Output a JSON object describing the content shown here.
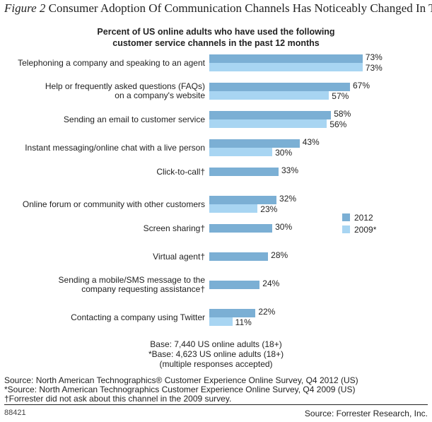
{
  "figure": {
    "number": "Figure 2",
    "title": "Consumer Adoption Of Communication Channels Has Noticeably Changed In Three Years",
    "id": "88421",
    "source_credit": "Source: Forrester Research, Inc."
  },
  "chart_data": {
    "type": "bar",
    "orientation": "horizontal",
    "title": "Percent of US online adults who have used the following\ncustomer service channels in the past 12 months",
    "categories": [
      "Telephoning a company and speaking to an agent",
      "Help or frequently asked questions (FAQs)\non a company's website",
      "Sending an email to customer service",
      "Instant messaging/online chat with a live person",
      "Click-to-call†",
      "Online forum or community with other customers",
      "Screen sharing†",
      "Virtual agent†",
      "Sending a mobile/SMS message to the\ncompany requesting assistance†",
      "Contacting a company using Twitter"
    ],
    "series": [
      {
        "name": "2012",
        "color": "#7bafd4",
        "values": [
          73,
          67,
          58,
          43,
          33,
          32,
          30,
          28,
          24,
          22
        ]
      },
      {
        "name": "2009*",
        "color": "#a8d5f2",
        "values": [
          73,
          57,
          56,
          30,
          null,
          23,
          null,
          null,
          null,
          11
        ]
      }
    ],
    "value_suffix": "%",
    "legend": "right",
    "grid": false,
    "xlabel": "",
    "ylabel": ""
  },
  "notes": {
    "base": "Base: 7,440 US online adults (18+)\n*Base: 4,623 US online adults (18+)\n(multiple responses accepted)",
    "sources": "Source: North American Technographics® Customer Experience Online Survey, Q4 2012 (US)\n*Source: North American Technographics Customer Experience Online Survey, Q4 2009 (US)\n†Forrester did not ask about this channel in the 2009 survey."
  }
}
